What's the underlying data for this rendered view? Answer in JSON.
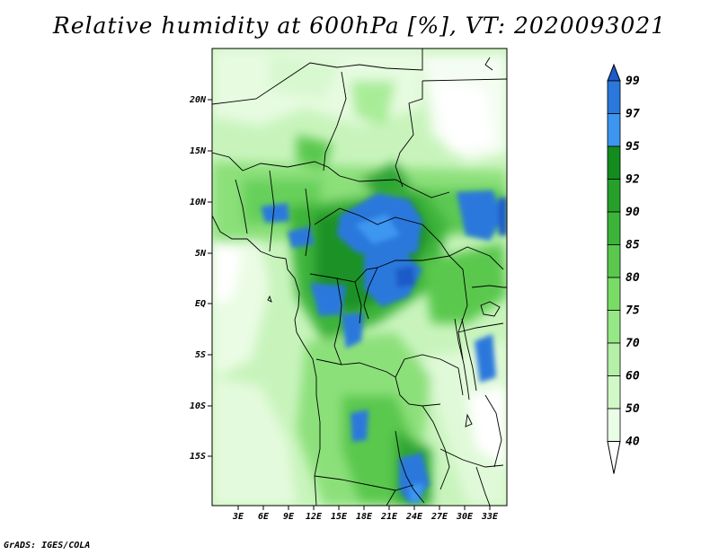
{
  "title": "Relative humidity at 600hPa [%], VT: 2020093021",
  "credit": "GrADS: IGES/COLA",
  "map": {
    "lat_labels": [
      "20N",
      "15N",
      "10N",
      "5N",
      "EQ",
      "5S",
      "10S",
      "15S"
    ],
    "lon_labels": [
      "3E",
      "6E",
      "9E",
      "12E",
      "15E",
      "18E",
      "21E",
      "24E",
      "27E",
      "30E",
      "33E"
    ]
  },
  "colorbar": {
    "labels": [
      "40",
      "50",
      "60",
      "70",
      "75",
      "80",
      "85",
      "90",
      "92",
      "95",
      "97",
      "99"
    ],
    "colors": [
      "#ffffff",
      "#eafde6",
      "#d2f8c8",
      "#b4f0a8",
      "#96e886",
      "#78dc66",
      "#5ac84e",
      "#3cb43a",
      "#26a02a",
      "#138c1e",
      "#3c96f0",
      "#2a78dc",
      "#1e5ac8"
    ]
  }
}
